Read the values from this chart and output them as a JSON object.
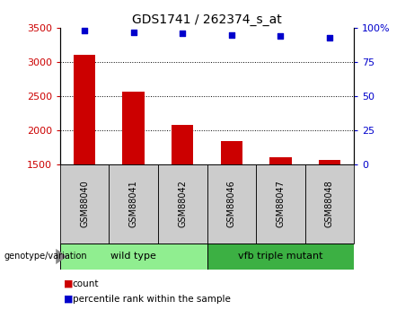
{
  "title": "GDS1741 / 262374_s_at",
  "categories": [
    "GSM88040",
    "GSM88041",
    "GSM88042",
    "GSM88046",
    "GSM88047",
    "GSM88048"
  ],
  "bar_values": [
    3100,
    2570,
    2080,
    1840,
    1610,
    1570
  ],
  "scatter_values": [
    98,
    97,
    96,
    95,
    94,
    93
  ],
  "ylim_left": [
    1500,
    3500
  ],
  "ylim_right": [
    0,
    100
  ],
  "yticks_left": [
    1500,
    2000,
    2500,
    3000,
    3500
  ],
  "yticks_right": [
    0,
    25,
    50,
    75,
    100
  ],
  "ytick_labels_right": [
    "0",
    "25",
    "50",
    "75",
    "100%"
  ],
  "bar_color": "#cc0000",
  "scatter_color": "#0000cc",
  "bar_bottom": 1500,
  "grid_values": [
    2000,
    2500,
    3000
  ],
  "group1_label": "wild type",
  "group2_label": "vfb triple mutant",
  "group1_indices": [
    0,
    1,
    2
  ],
  "group2_indices": [
    3,
    4,
    5
  ],
  "genotype_label": "genotype/variation",
  "legend_count_label": "count",
  "legend_pct_label": "percentile rank within the sample",
  "tick_label_color_left": "#cc0000",
  "tick_label_color_right": "#0000cc",
  "group1_bg": "#90EE90",
  "group2_bg": "#3CB043",
  "sample_label_bg": "#cccccc",
  "fig_width": 4.61,
  "fig_height": 3.45,
  "dpi": 100
}
